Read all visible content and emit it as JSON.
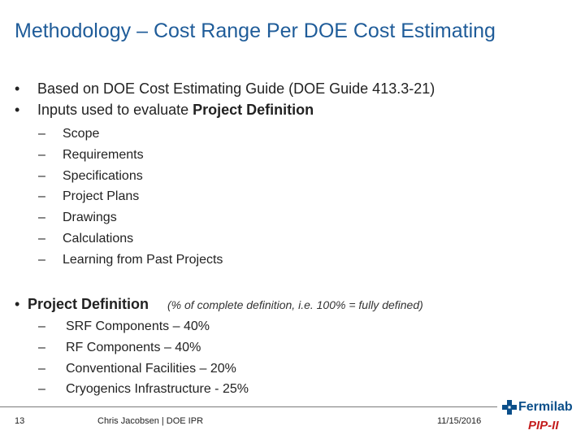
{
  "slide": {
    "title": "Methodology – Cost Range Per DOE Cost Estimating",
    "bullets": [
      {
        "marker": "•",
        "text": "Based on DOE Cost Estimating Guide (DOE Guide 413.3-21)"
      },
      {
        "marker": "•",
        "text_plain": "Inputs used to evaluate ",
        "text_bold": "Project Definition"
      }
    ],
    "inputs": [
      "Scope",
      "Requirements",
      "Specifications",
      "Project Plans",
      "Drawings",
      "Calculations",
      "Learning from Past Projects"
    ],
    "project_definition": {
      "marker": "•",
      "label": "Project Definition",
      "note": "(% of complete definition, i.e. 100% = fully defined)",
      "items": [
        "SRF Components – 40%",
        "RF Components – 40%",
        "Conventional Facilities – 20%",
        "Cryogenics Infrastructure - 25%"
      ]
    },
    "dash": "–"
  },
  "footer": {
    "page_number": "13",
    "author": "Chris Jacobsen | DOE IPR",
    "date": "11/15/2016",
    "logo_text": "Fermilab",
    "program_logo": "PIP-II"
  },
  "colors": {
    "title": "#1f5c99",
    "fermilab_logo": "#0b4f8a",
    "pip_logo": "#c41e1e"
  }
}
